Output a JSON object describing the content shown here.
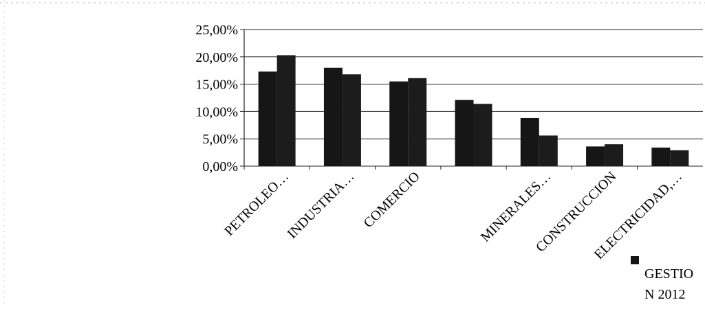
{
  "chart_data": {
    "type": "bar",
    "categories": [
      "PETROLEO…",
      "INDUSTRIA…",
      "COMERCIO",
      "",
      "MINERALES…",
      "CONSTRUCCION",
      "ELECTRICIDAD,…"
    ],
    "series": [
      {
        "name": "",
        "values": [
          17.3,
          18.0,
          15.5,
          12.1,
          8.8,
          3.6,
          3.4
        ],
        "color": "#161616"
      },
      {
        "name": "GESTIO N 2012",
        "values": [
          20.3,
          16.8,
          16.1,
          11.4,
          5.6,
          4.0,
          2.9
        ],
        "color": "#1c1c1c"
      }
    ],
    "y_ticks": [
      "0,00%",
      "5,00%",
      "10,00%",
      "15,00%",
      "20,00%",
      "25,00%"
    ],
    "ylim": [
      0,
      25
    ],
    "grid": true,
    "legend_placement": "bottom-right"
  },
  "legend": {
    "label": "GESTIO\nN 2012"
  }
}
